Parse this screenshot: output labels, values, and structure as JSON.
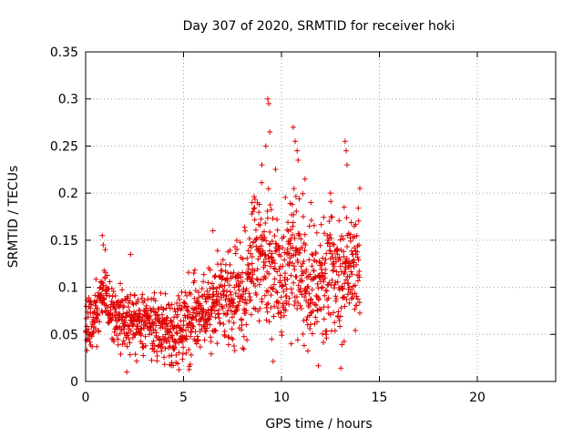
{
  "chart_data": {
    "type": "scatter",
    "title": "Day 307 of 2020, SRMTID for receiver hoki",
    "xlabel": "GPS time / hours",
    "ylabel": "SRMTID / TECUs",
    "xlim": [
      0,
      24
    ],
    "ylim": [
      0,
      0.35
    ],
    "x_ticks": [
      0,
      5,
      10,
      15,
      20
    ],
    "y_ticks": [
      0,
      0.05,
      0.1,
      0.15,
      0.2,
      0.25,
      0.3,
      0.35
    ],
    "x_tick_labels": [
      "0",
      "5",
      "10",
      "15",
      "20"
    ],
    "y_tick_labels": [
      "0",
      "0.05",
      "0.1",
      "0.15",
      "0.2",
      "0.25",
      "0.3",
      "0.35"
    ],
    "grid": true,
    "marker": "plus",
    "color": "#e00000",
    "trend": {
      "x": [
        0,
        0.5,
        0.8,
        1,
        1.5,
        2,
        3,
        4,
        4.5,
        5,
        5.5,
        6,
        6.5,
        7,
        7.5,
        8,
        8.5,
        9,
        9.5,
        10,
        10.5,
        11,
        11.5,
        12,
        12.5,
        13,
        13.5,
        14
      ],
      "y": [
        0.065,
        0.07,
        0.095,
        0.085,
        0.07,
        0.065,
        0.06,
        0.055,
        0.05,
        0.06,
        0.075,
        0.07,
        0.085,
        0.09,
        0.085,
        0.1,
        0.12,
        0.14,
        0.12,
        0.11,
        0.14,
        0.12,
        0.105,
        0.1,
        0.115,
        0.115,
        0.12,
        0.12
      ]
    },
    "spread": {
      "x": [
        0,
        2,
        5,
        7.5,
        8.5,
        14
      ],
      "y": [
        0.02,
        0.02,
        0.025,
        0.03,
        0.045,
        0.04
      ]
    },
    "highlights": [
      {
        "x": 0.85,
        "y": 0.155
      },
      {
        "x": 0.9,
        "y": 0.145
      },
      {
        "x": 1.0,
        "y": 0.14
      },
      {
        "x": 2.3,
        "y": 0.135
      },
      {
        "x": 2.1,
        "y": 0.01
      },
      {
        "x": 6.5,
        "y": 0.16
      },
      {
        "x": 8.5,
        "y": 0.19
      },
      {
        "x": 9.2,
        "y": 0.25
      },
      {
        "x": 9.3,
        "y": 0.3
      },
      {
        "x": 9.35,
        "y": 0.295
      },
      {
        "x": 9.4,
        "y": 0.265
      },
      {
        "x": 9.0,
        "y": 0.23
      },
      {
        "x": 10.6,
        "y": 0.27
      },
      {
        "x": 10.7,
        "y": 0.255
      },
      {
        "x": 10.8,
        "y": 0.245
      },
      {
        "x": 10.85,
        "y": 0.235
      },
      {
        "x": 11.2,
        "y": 0.215
      },
      {
        "x": 11.5,
        "y": 0.19
      },
      {
        "x": 12.5,
        "y": 0.2
      },
      {
        "x": 13.25,
        "y": 0.255
      },
      {
        "x": 13.3,
        "y": 0.245
      },
      {
        "x": 13.35,
        "y": 0.23
      },
      {
        "x": 13.2,
        "y": 0.185
      },
      {
        "x": 9.5,
        "y": 0.045
      },
      {
        "x": 10.5,
        "y": 0.04
      },
      {
        "x": 4.4,
        "y": 0.02
      },
      {
        "x": 14.0,
        "y": 0.205
      }
    ]
  }
}
